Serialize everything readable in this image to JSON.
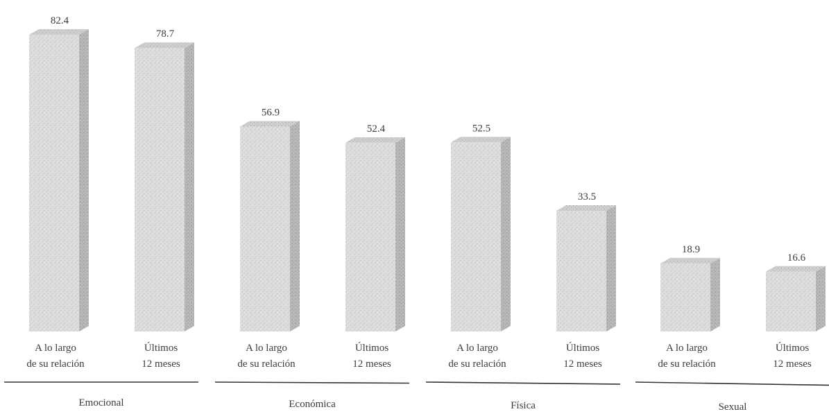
{
  "chart_data": {
    "type": "bar",
    "title": "",
    "xlabel": "",
    "ylabel": "",
    "ylim": [
      0,
      85
    ],
    "grid": false,
    "legend": "none",
    "groups": [
      {
        "name": "Emocional",
        "bars": [
          {
            "label_line1": "A lo largo",
            "label_line2": "de su relación",
            "value": 82.4,
            "value_label": "82.4"
          },
          {
            "label_line1": "Últimos",
            "label_line2": "12 meses",
            "value": 78.7,
            "value_label": "78.7"
          }
        ]
      },
      {
        "name": "Económica",
        "bars": [
          {
            "label_line1": "A lo largo",
            "label_line2": "de su relación",
            "value": 56.9,
            "value_label": "56.9"
          },
          {
            "label_line1": "Últimos",
            "label_line2": "12 meses",
            "value": 52.4,
            "value_label": "52.4"
          }
        ]
      },
      {
        "name": "Física",
        "bars": [
          {
            "label_line1": "A lo largo",
            "label_line2": "de su relación",
            "value": 52.5,
            "value_label": "52.5"
          },
          {
            "label_line1": "Últimos",
            "label_line2": "12 meses",
            "value": 33.5,
            "value_label": "33.5"
          }
        ]
      },
      {
        "name": "Sexual",
        "bars": [
          {
            "label_line1": "A lo largo",
            "label_line2": "de su relación",
            "value": 18.9,
            "value_label": "18.9"
          },
          {
            "label_line1": "Últimos",
            "label_line2": "12 meses",
            "value": 16.6,
            "value_label": "16.6"
          }
        ]
      }
    ],
    "colors": {
      "front": "#d9d9d9",
      "side": "#b5b5b5",
      "top": "#c8c8c8",
      "rule": "#333333"
    }
  }
}
